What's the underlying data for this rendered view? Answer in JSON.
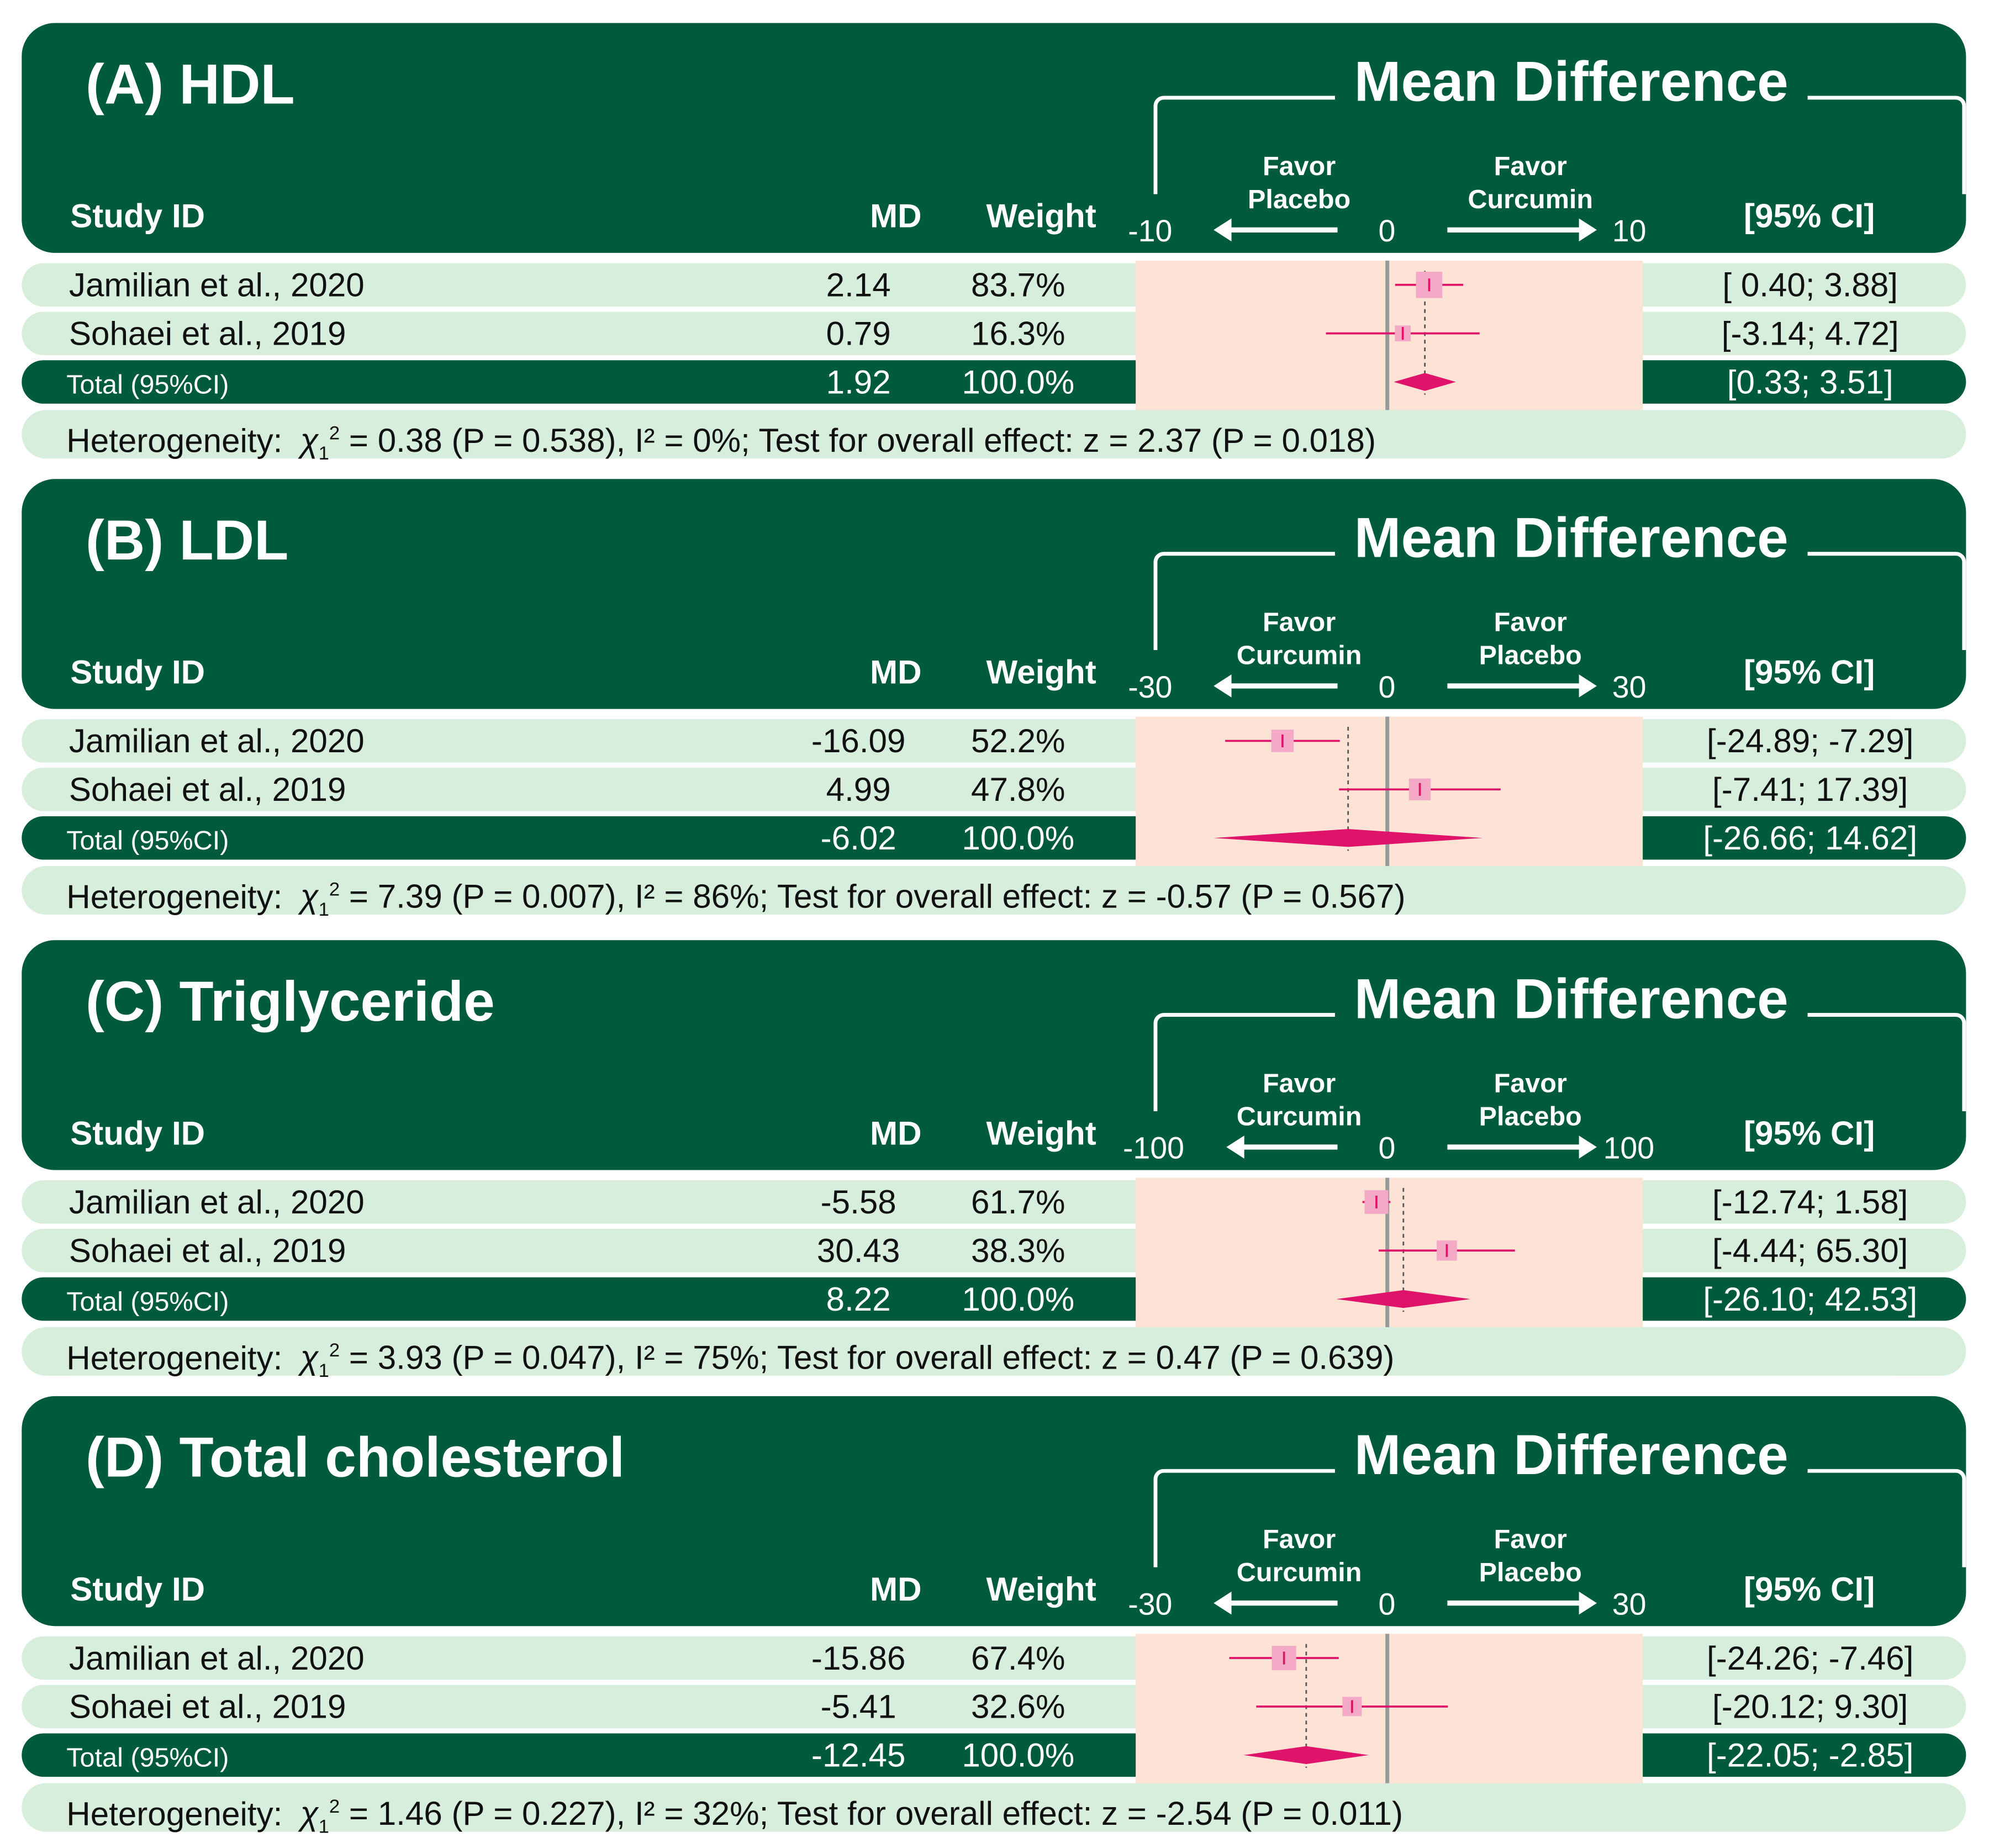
{
  "colors": {
    "dark_green": "#005a3c",
    "light_green": "#d8eedd",
    "plot_bg": "#fde3d6",
    "marker": "#e0136a",
    "marker_box": "#f4a9c6",
    "zero_line": "#999999"
  },
  "headers": {
    "study": "Study ID",
    "md": "MD",
    "weight": "Weight",
    "ci": "[95% CI]",
    "axis_title": "Mean Difference"
  },
  "total_label": "Total (95%CI)",
  "panels": [
    {
      "title": "(A) HDL",
      "favor_left": "Favor Placebo",
      "favor_right": "Favor Curcumin",
      "ticks": [
        "-10",
        "0",
        "10"
      ],
      "studies": [
        {
          "name": "Jamilian et al., 2020",
          "md": "2.14",
          "weight": "83.7%",
          "ci": "[ 0.40; 3.88]"
        },
        {
          "name": "Sohaei et al., 2019",
          "md": "0.79",
          "weight": "16.3%",
          "ci": "[-3.14; 4.72]"
        }
      ],
      "total": {
        "md": "1.92",
        "weight": "100.0%",
        "ci": "[0.33; 3.51]"
      },
      "het_label": "Heterogeneity:",
      "het_chi": "χ",
      "het_sub": "1",
      "het_sup": "2",
      "het_rest": " = 0.38 (P = 0.538), I² = 0%; Test for overall effect: z = 2.37 (P = 0.018)"
    },
    {
      "title": "(B) LDL",
      "favor_left": "Favor Curcumin",
      "favor_right": "Favor Placebo",
      "ticks": [
        "-30",
        "0",
        "30"
      ],
      "studies": [
        {
          "name": "Jamilian et al., 2020",
          "md": "-16.09",
          "weight": "52.2%",
          "ci": "[-24.89; -7.29]"
        },
        {
          "name": "Sohaei et al., 2019",
          "md": "4.99",
          "weight": "47.8%",
          "ci": "[-7.41; 17.39]"
        }
      ],
      "total": {
        "md": "-6.02",
        "weight": "100.0%",
        "ci": "[-26.66; 14.62]"
      },
      "het_label": "Heterogeneity:",
      "het_chi": "χ",
      "het_sub": "1",
      "het_sup": "2",
      "het_rest": " = 7.39 (P = 0.007), I² = 86%; Test for overall effect: z = -0.57 (P = 0.567)"
    },
    {
      "title": "(C) Triglyceride",
      "favor_left": "Favor Curcumin",
      "favor_right": "Favor Placebo",
      "ticks": [
        "-100",
        "0",
        "100"
      ],
      "studies": [
        {
          "name": "Jamilian et al., 2020",
          "md": "-5.58",
          "weight": "61.7%",
          "ci": "[-12.74; 1.58]"
        },
        {
          "name": "Sohaei et al., 2019",
          "md": "30.43",
          "weight": "38.3%",
          "ci": "[-4.44; 65.30]"
        }
      ],
      "total": {
        "md": "8.22",
        "weight": "100.0%",
        "ci": "[-26.10; 42.53]"
      },
      "het_label": "Heterogeneity:",
      "het_chi": "χ",
      "het_sub": "1",
      "het_sup": "2",
      "het_rest": " = 3.93 (P = 0.047), I² = 75%; Test for overall effect: z = 0.47 (P = 0.639)"
    },
    {
      "title": "(D) Total cholesterol",
      "favor_left": "Favor Curcumin",
      "favor_right": "Favor Placebo",
      "ticks": [
        "-30",
        "0",
        "30"
      ],
      "studies": [
        {
          "name": "Jamilian et al., 2020",
          "md": "-15.86",
          "weight": "67.4%",
          "ci": "[-24.26; -7.46]"
        },
        {
          "name": "Sohaei et al., 2019",
          "md": "-5.41",
          "weight": "32.6%",
          "ci": "[-20.12; 9.30]"
        }
      ],
      "total": {
        "md": "-12.45",
        "weight": "100.0%",
        "ci": "[-22.05; -2.85]"
      },
      "het_label": "Heterogeneity:",
      "het_chi": "χ",
      "het_sub": "1",
      "het_sup": "2",
      "het_rest": " = 1.46 (P = 0.227), I² = 32%; Test for overall effect: z = -2.54 (P = 0.011)"
    }
  ],
  "chart_data": [
    {
      "type": "forest",
      "title": "(A) HDL",
      "xlabel": "Mean Difference",
      "xlim": [
        -10,
        10
      ],
      "favor_left": "Favor Placebo",
      "favor_right": "Favor Curcumin",
      "studies": [
        {
          "name": "Jamilian et al., 2020",
          "md": 2.14,
          "lo": 0.4,
          "hi": 3.88,
          "weight": 83.7
        },
        {
          "name": "Sohaei et al., 2019",
          "md": 0.79,
          "lo": -3.14,
          "hi": 4.72,
          "weight": 16.3
        }
      ],
      "pooled": {
        "md": 1.92,
        "lo": 0.33,
        "hi": 3.51
      }
    },
    {
      "type": "forest",
      "title": "(B) LDL",
      "xlabel": "Mean Difference",
      "xlim": [
        -30,
        30
      ],
      "favor_left": "Favor Curcumin",
      "favor_right": "Favor Placebo",
      "studies": [
        {
          "name": "Jamilian et al., 2020",
          "md": -16.09,
          "lo": -24.89,
          "hi": -7.29,
          "weight": 52.2
        },
        {
          "name": "Sohaei et al., 2019",
          "md": 4.99,
          "lo": -7.41,
          "hi": 17.39,
          "weight": 47.8
        }
      ],
      "pooled": {
        "md": -6.02,
        "lo": -26.66,
        "hi": 14.62
      }
    },
    {
      "type": "forest",
      "title": "(C) Triglyceride",
      "xlabel": "Mean Difference",
      "xlim": [
        -100,
        100
      ],
      "favor_left": "Favor Curcumin",
      "favor_right": "Favor Placebo",
      "studies": [
        {
          "name": "Jamilian et al., 2020",
          "md": -5.58,
          "lo": -12.74,
          "hi": 1.58,
          "weight": 61.7
        },
        {
          "name": "Sohaei et al., 2019",
          "md": 30.43,
          "lo": -4.44,
          "hi": 65.3,
          "weight": 38.3
        }
      ],
      "pooled": {
        "md": 8.22,
        "lo": -26.1,
        "hi": 42.53
      }
    },
    {
      "type": "forest",
      "title": "(D) Total cholesterol",
      "xlabel": "Mean Difference",
      "xlim": [
        -30,
        30
      ],
      "favor_left": "Favor Curcumin",
      "favor_right": "Favor Placebo",
      "studies": [
        {
          "name": "Jamilian et al., 2020",
          "md": -15.86,
          "lo": -24.26,
          "hi": -7.46,
          "weight": 67.4
        },
        {
          "name": "Sohaei et al., 2019",
          "md": -5.41,
          "lo": -20.12,
          "hi": 9.3,
          "weight": 32.6
        }
      ],
      "pooled": {
        "md": -12.45,
        "lo": -22.05,
        "hi": -2.85
      }
    }
  ]
}
